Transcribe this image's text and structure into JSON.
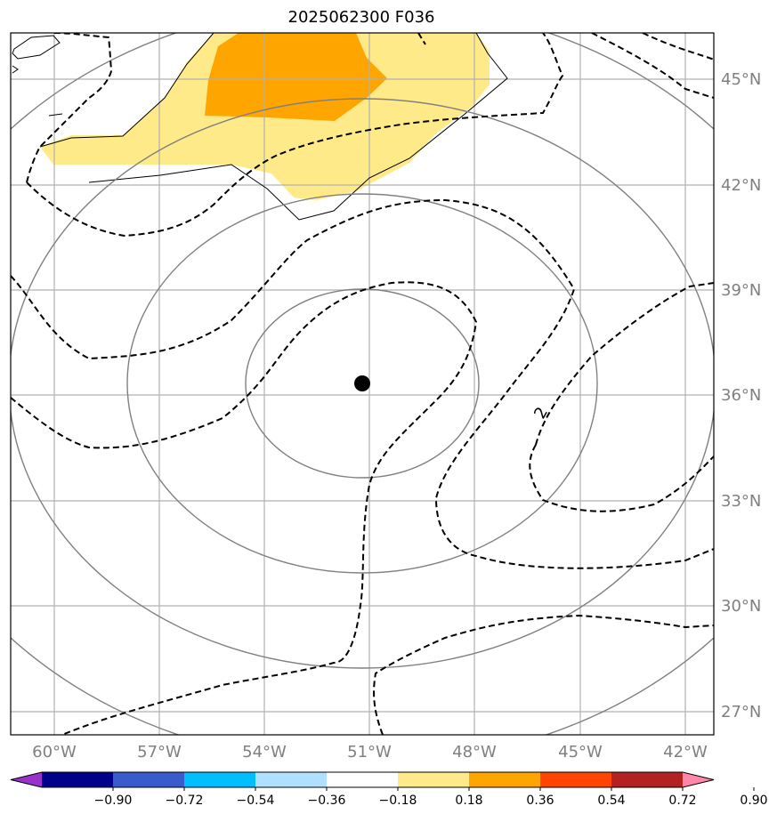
{
  "title": "2025062300 F036",
  "map": {
    "lon_ticks": [
      "60°W",
      "57°W",
      "54°W",
      "51°W",
      "48°W",
      "45°W",
      "42°W"
    ],
    "lat_ticks": [
      "45°N",
      "42°N",
      "39°N",
      "36°N",
      "33°N",
      "30°N",
      "27°N"
    ],
    "contour_label": "2",
    "center_marker": {
      "lon": -51.2,
      "lat": 36.3
    },
    "fill_colors": {
      "light": "#ffea8a",
      "medium": "#ffa500"
    },
    "line_colors": {
      "dashed": "#000000",
      "range_rings": "#808080",
      "grid": "#b0b0b0"
    }
  },
  "colorbar": {
    "colors": [
      "#9932cc",
      "#00008b",
      "#3a5bcd",
      "#00bfff",
      "#b0e0ff",
      "#ffffff",
      "#ffea8a",
      "#ffa500",
      "#ff4500",
      "#b22222",
      "#ff88aa"
    ],
    "labels": [
      "−0.90",
      "−0.72",
      "−0.54",
      "−0.36",
      "−0.18",
      "0.18",
      "0.36",
      "0.54",
      "0.72",
      "0.90"
    ]
  }
}
